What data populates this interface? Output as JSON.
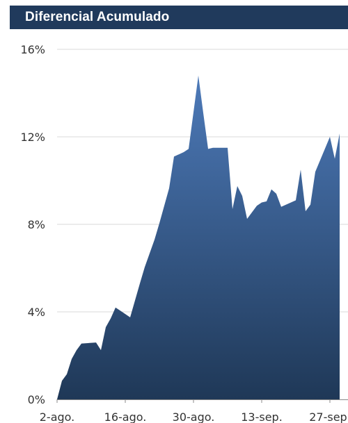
{
  "title": "Diferencial Acumulado",
  "colors": {
    "title_bar": "#203a5c",
    "title_text": "#ffffff",
    "area_top": "#4d7ab9",
    "area_bottom": "#1f3857",
    "grid": "#d9d9d9",
    "axis": "#888888",
    "tick_text": "#333333"
  },
  "chart_data": {
    "type": "area",
    "title": "Diferencial Acumulado",
    "xlabel": "",
    "ylabel": "",
    "ylim": [
      0,
      16
    ],
    "y_unit": "%",
    "y_ticks": [
      "0%",
      "4%",
      "8%",
      "12%",
      "16%"
    ],
    "y_tick_values": [
      0,
      4,
      8,
      12,
      16
    ],
    "x_ticks": [
      "2-ago.",
      "16-ago.",
      "30-ago.",
      "13-sep.",
      "27-sep."
    ],
    "x_tick_values": [
      "2023-08-02",
      "2023-08-16",
      "2023-08-30",
      "2023-09-13",
      "2023-09-27"
    ],
    "xlim": [
      "2023-08-02",
      "2023-09-30"
    ],
    "grid": true,
    "legend": "none",
    "series": [
      {
        "x": [
          "2023-08-02",
          "2023-08-03",
          "2023-08-04",
          "2023-08-05",
          "2023-08-06",
          "2023-08-07",
          "2023-08-10",
          "2023-08-11",
          "2023-08-12",
          "2023-08-13",
          "2023-08-14",
          "2023-08-15",
          "2023-08-16",
          "2023-08-17",
          "2023-08-19",
          "2023-08-20",
          "2023-08-22",
          "2023-08-23",
          "2023-08-25",
          "2023-08-26",
          "2023-08-27",
          "2023-08-28",
          "2023-08-29",
          "2023-08-31",
          "2023-09-01",
          "2023-09-02",
          "2023-09-03",
          "2023-09-06",
          "2023-09-07",
          "2023-09-08",
          "2023-09-09",
          "2023-09-10",
          "2023-09-12",
          "2023-09-13",
          "2023-09-14",
          "2023-09-15",
          "2023-09-16",
          "2023-09-17",
          "2023-09-20",
          "2023-09-21",
          "2023-09-22",
          "2023-09-23",
          "2023-09-24",
          "2023-09-27",
          "2023-09-28",
          "2023-09-29"
        ],
        "values": [
          0.0,
          0.85,
          1.15,
          1.85,
          2.25,
          2.55,
          2.6,
          2.25,
          3.3,
          3.7,
          4.2,
          4.05,
          3.9,
          3.75,
          5.3,
          6.05,
          7.3,
          8.05,
          9.65,
          11.1,
          11.2,
          11.3,
          11.45,
          14.8,
          13.1,
          11.45,
          11.5,
          11.5,
          8.7,
          9.75,
          9.3,
          8.25,
          8.85,
          9.0,
          9.05,
          9.6,
          9.4,
          8.8,
          9.1,
          10.5,
          8.6,
          8.9,
          10.4,
          12.0,
          11.0,
          12.15
        ]
      }
    ]
  }
}
